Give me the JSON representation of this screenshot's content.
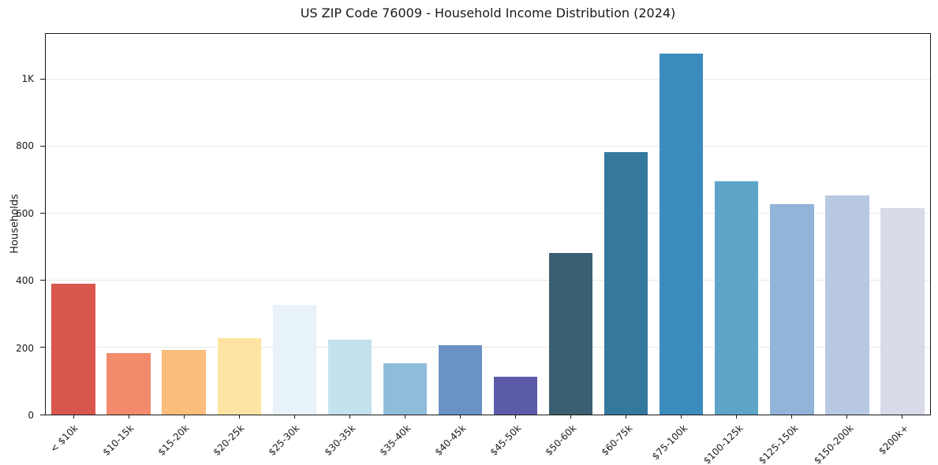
{
  "chart_data": {
    "type": "bar",
    "title": "US ZIP Code 76009 - Household Income Distribution (2024)",
    "xlabel": "",
    "ylabel": "Households",
    "categories": [
      "< $10k",
      "$10-15k",
      "$15-20k",
      "$20-25k",
      "$25-30k",
      "$30-35k",
      "$35-40k",
      "$40-45k",
      "$45-50k",
      "$50-60k",
      "$60-75k",
      "$75-100k",
      "$100-125k",
      "$125-150k",
      "$150-200k",
      "$200k+"
    ],
    "values": [
      390,
      183,
      194,
      229,
      326,
      223,
      154,
      208,
      113,
      483,
      783,
      1078,
      697,
      627,
      655,
      616
    ],
    "bar_colors": [
      "#d9564e",
      "#f28b6c",
      "#fbbc7c",
      "#fde4a3",
      "#e7f3f8",
      "#c3e1ef",
      "#90bcdc",
      "#6b92c4",
      "#5c5ba9",
      "#395f70",
      "#35789d",
      "#3a8cbe",
      "#5da5c8",
      "#91b4d8",
      "#b8c8e1",
      "#d8dae8"
    ],
    "ylim": [
      0,
      1136
    ],
    "yticks": [
      {
        "value": 0,
        "label": "0"
      },
      {
        "value": 200,
        "label": "200"
      },
      {
        "value": 400,
        "label": "400"
      },
      {
        "value": 600,
        "label": "600"
      },
      {
        "value": 800,
        "label": "800"
      },
      {
        "value": 1000,
        "label": "1K"
      }
    ],
    "grid": "horizontal",
    "legend": "none",
    "spine_color": "#1a1a1a",
    "grid_color": "#e7e7e7"
  }
}
